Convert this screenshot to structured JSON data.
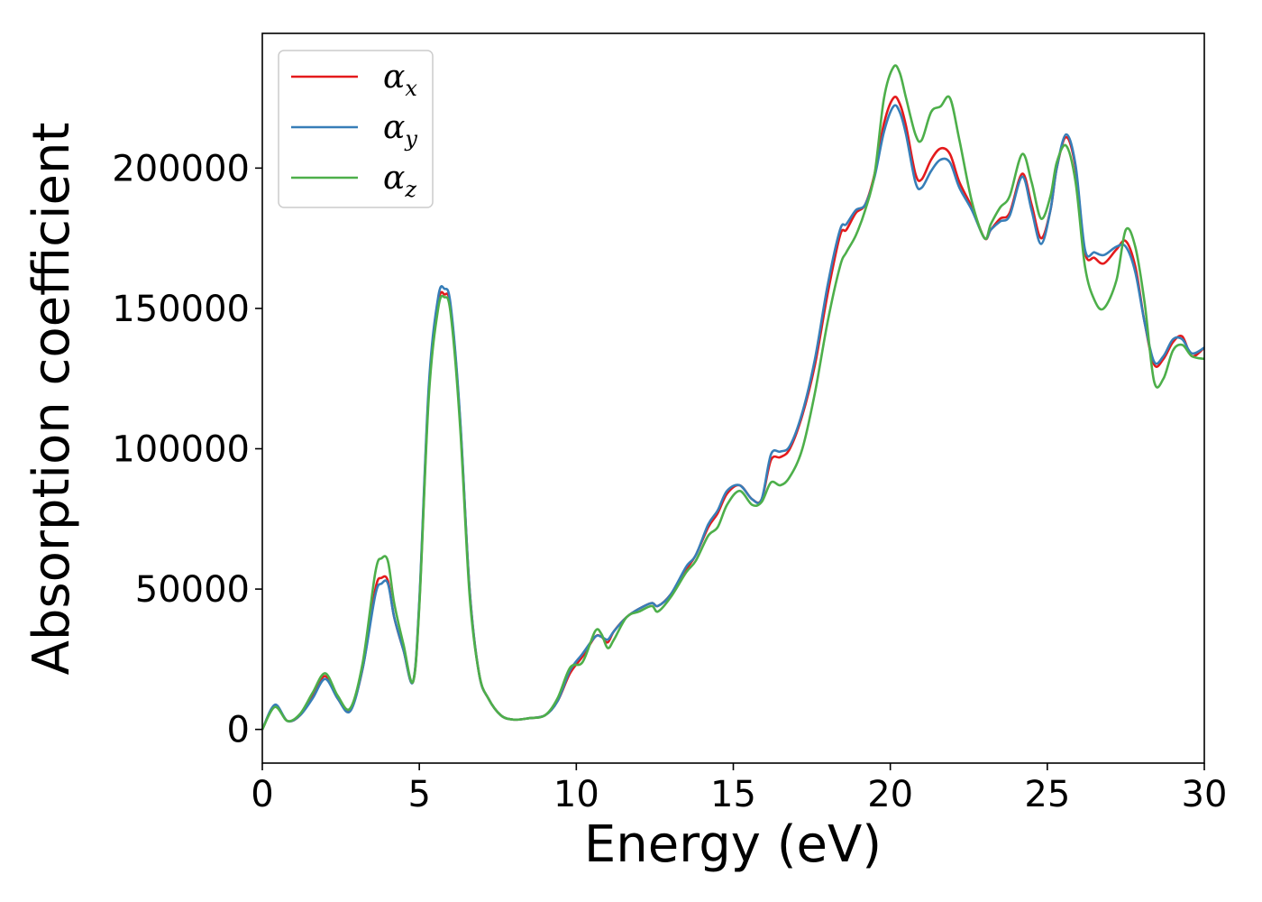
{
  "chart_data": {
    "type": "line",
    "xlabel": "Energy (eV)",
    "ylabel": "Absorption coefficient",
    "xlim": [
      0,
      30
    ],
    "ylim": [
      -12000,
      248000
    ],
    "xticks": [
      0,
      5,
      10,
      15,
      20,
      25,
      30
    ],
    "xtick_labels": [
      "0",
      "5",
      "10",
      "15",
      "20",
      "25",
      "30"
    ],
    "yticks": [
      0,
      50000,
      100000,
      150000,
      200000
    ],
    "ytick_labels": [
      "0",
      "50000",
      "100000",
      "150000",
      "200000"
    ],
    "grid": false,
    "legend_position": "top-left",
    "series": [
      {
        "name": "α",
        "subscript": "x",
        "color": "#e41a1c",
        "x": [
          0,
          0.4,
          0.8,
          1.2,
          1.6,
          2.0,
          2.4,
          2.8,
          3.2,
          3.6,
          3.8,
          4.0,
          4.2,
          4.5,
          4.8,
          5.0,
          5.3,
          5.6,
          5.8,
          6.0,
          6.3,
          6.6,
          6.9,
          7.2,
          7.6,
          8.0,
          8.5,
          9.0,
          9.4,
          9.8,
          10.2,
          10.6,
          10.8,
          11.0,
          11.2,
          11.6,
          12.0,
          12.4,
          12.6,
          13.0,
          13.5,
          13.8,
          14.2,
          14.5,
          14.8,
          15.2,
          15.6,
          15.9,
          16.2,
          16.5,
          16.8,
          17.2,
          17.6,
          18.0,
          18.4,
          18.6,
          18.9,
          19.2,
          19.5,
          19.8,
          20.1,
          20.3,
          20.5,
          20.8,
          21.0,
          21.3,
          21.6,
          21.9,
          22.2,
          22.6,
          23.0,
          23.2,
          23.5,
          23.8,
          24.2,
          24.5,
          24.8,
          25.1,
          25.3,
          25.6,
          25.9,
          26.2,
          26.5,
          26.8,
          27.2,
          27.5,
          27.8,
          28.1,
          28.4,
          28.7,
          29.0,
          29.3,
          29.6,
          30.0
        ],
        "y": [
          0,
          8500,
          3000,
          5000,
          12000,
          19000,
          11000,
          7000,
          22000,
          50000,
          54000,
          53000,
          40000,
          28000,
          17000,
          45000,
          120000,
          152000,
          155000,
          150000,
          110000,
          50000,
          20000,
          11000,
          5000,
          3500,
          4000,
          5000,
          10000,
          20000,
          26000,
          33000,
          33000,
          31000,
          35000,
          40000,
          43000,
          45000,
          44000,
          48000,
          57000,
          62000,
          72000,
          77000,
          84000,
          87000,
          82000,
          82000,
          96000,
          97000,
          100000,
          112000,
          130000,
          155000,
          176000,
          178000,
          184000,
          187000,
          198000,
          216000,
          225000,
          223000,
          215000,
          198000,
          196000,
          203000,
          207000,
          205000,
          195000,
          186000,
          175000,
          178000,
          182000,
          184000,
          198000,
          187000,
          175000,
          185000,
          200000,
          211000,
          200000,
          170000,
          168000,
          166000,
          171000,
          174000,
          165000,
          145000,
          130000,
          132000,
          138000,
          140000,
          133000,
          136000
        ]
      },
      {
        "name": "α",
        "subscript": "y",
        "color": "#377eb8",
        "x": [
          0,
          0.4,
          0.8,
          1.2,
          1.6,
          2.0,
          2.4,
          2.8,
          3.2,
          3.6,
          3.8,
          4.0,
          4.2,
          4.5,
          4.8,
          5.0,
          5.3,
          5.6,
          5.8,
          6.0,
          6.3,
          6.6,
          6.9,
          7.2,
          7.6,
          8.0,
          8.5,
          9.0,
          9.4,
          9.8,
          10.2,
          10.6,
          10.8,
          11.0,
          11.2,
          11.6,
          12.0,
          12.4,
          12.6,
          13.0,
          13.5,
          13.8,
          14.2,
          14.5,
          14.8,
          15.2,
          15.6,
          15.9,
          16.2,
          16.5,
          16.8,
          17.2,
          17.6,
          18.0,
          18.4,
          18.6,
          18.9,
          19.2,
          19.5,
          19.8,
          20.1,
          20.3,
          20.5,
          20.8,
          21.0,
          21.3,
          21.6,
          21.9,
          22.2,
          22.6,
          23.0,
          23.2,
          23.5,
          23.8,
          24.2,
          24.5,
          24.8,
          25.1,
          25.3,
          25.6,
          25.9,
          26.2,
          26.5,
          26.8,
          27.2,
          27.5,
          27.8,
          28.1,
          28.4,
          28.7,
          29.0,
          29.3,
          29.6,
          30.0
        ],
        "y": [
          0,
          8800,
          3000,
          5000,
          11000,
          18000,
          11000,
          6500,
          22000,
          48000,
          52000,
          52000,
          40000,
          28000,
          17000,
          46000,
          122000,
          154000,
          157000,
          151000,
          111000,
          50000,
          20000,
          11000,
          5000,
          3500,
          4000,
          5000,
          10000,
          21000,
          27000,
          33000,
          33000,
          32000,
          35000,
          40000,
          43000,
          45000,
          44000,
          48000,
          58000,
          62000,
          73000,
          78000,
          85000,
          87000,
          82000,
          82000,
          98000,
          99000,
          101000,
          113000,
          132000,
          158000,
          178000,
          180000,
          185000,
          187000,
          197000,
          213000,
          222000,
          220000,
          212000,
          195000,
          193000,
          199000,
          203000,
          202000,
          193000,
          185000,
          175000,
          178000,
          181000,
          183000,
          197000,
          185000,
          173000,
          185000,
          200000,
          212000,
          201000,
          171000,
          170000,
          169000,
          172000,
          172000,
          163000,
          145000,
          131000,
          133000,
          139000,
          139000,
          134000,
          136000
        ]
      },
      {
        "name": "α",
        "subscript": "z",
        "color": "#4daf4a",
        "x": [
          0,
          0.4,
          0.8,
          1.2,
          1.6,
          2.0,
          2.4,
          2.8,
          3.2,
          3.6,
          3.8,
          4.0,
          4.2,
          4.5,
          4.8,
          5.0,
          5.3,
          5.6,
          5.8,
          6.0,
          6.3,
          6.6,
          6.9,
          7.2,
          7.6,
          8.0,
          8.5,
          9.0,
          9.4,
          9.8,
          10.2,
          10.6,
          10.8,
          11.0,
          11.2,
          11.6,
          12.0,
          12.4,
          12.6,
          13.0,
          13.5,
          13.8,
          14.2,
          14.5,
          14.8,
          15.2,
          15.6,
          15.9,
          16.2,
          16.5,
          16.8,
          17.2,
          17.6,
          18.0,
          18.4,
          18.6,
          18.9,
          19.2,
          19.5,
          19.8,
          20.1,
          20.3,
          20.5,
          20.8,
          21.0,
          21.3,
          21.6,
          21.9,
          22.2,
          22.6,
          23.0,
          23.2,
          23.5,
          23.8,
          24.2,
          24.5,
          24.8,
          25.1,
          25.3,
          25.6,
          25.9,
          26.2,
          26.5,
          26.8,
          27.2,
          27.5,
          27.8,
          28.1,
          28.4,
          28.7,
          29.0,
          29.3,
          29.6,
          30.0
        ],
        "y": [
          0,
          8000,
          3000,
          5500,
          13000,
          20000,
          12000,
          7500,
          24000,
          56000,
          61000,
          60000,
          45000,
          30000,
          17000,
          44000,
          118000,
          150000,
          154000,
          148000,
          108000,
          48000,
          20000,
          11000,
          5000,
          3500,
          4000,
          5000,
          11000,
          22000,
          24000,
          35000,
          34000,
          29000,
          32000,
          40000,
          42000,
          44000,
          42000,
          47000,
          56000,
          60000,
          69000,
          72000,
          80000,
          85000,
          80000,
          81000,
          88000,
          87000,
          90000,
          100000,
          120000,
          145000,
          165000,
          170000,
          176000,
          185000,
          198000,
          225000,
          236000,
          234000,
          225000,
          212000,
          210000,
          220000,
          222000,
          225000,
          210000,
          188000,
          175000,
          180000,
          186000,
          190000,
          205000,
          195000,
          182000,
          190000,
          202000,
          208000,
          195000,
          165000,
          153000,
          150000,
          160000,
          178000,
          172000,
          152000,
          124000,
          125000,
          135000,
          137000,
          133000,
          132000
        ]
      }
    ]
  }
}
